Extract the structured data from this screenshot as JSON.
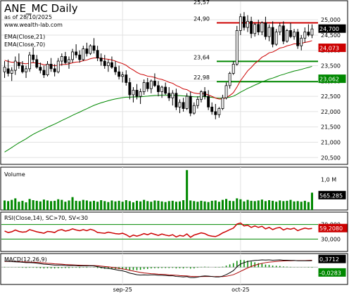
{
  "header": {
    "title": "ANE_MC Daily",
    "date": "as of 28/10/2025",
    "source": "www.wealth-lab.com"
  },
  "colors": {
    "up_candle": "#ffffff",
    "down_candle": "#000000",
    "ema21": "#cc0000",
    "ema70": "#008800",
    "volume": "#008800",
    "rsi": "#cc0000",
    "macd": "#000000",
    "macd_signal": "#aa0000",
    "hist": "#008800",
    "level_red": "#cc0000",
    "level_green": "#008800",
    "frame": "#000000"
  },
  "chart_data": [
    {
      "type": "candlestick",
      "pane": "price",
      "legend": [
        "EMA(Close,21)",
        "EMA(Close,70)"
      ],
      "ylim": [
        20300,
        25600
      ],
      "ticks": [
        20500,
        21000,
        21500,
        22000,
        22500,
        23000,
        23500,
        24000,
        24500,
        25000
      ],
      "tick_labels": [
        "20,500",
        "21,000",
        "21,500",
        "22,000",
        "22,500",
        "23,000",
        "23,500",
        "24,000",
        "24,500",
        "25,000"
      ],
      "x_labels": [
        {
          "label": "sep-25",
          "index": 33
        },
        {
          "label": "oct-25",
          "index": 66
        }
      ],
      "top_label": "25,57",
      "ohlc": [
        [
          23300,
          23650,
          23100,
          23450
        ],
        [
          23400,
          23700,
          23150,
          23250
        ],
        [
          23250,
          23450,
          23000,
          23350
        ],
        [
          23350,
          23800,
          23200,
          23650
        ],
        [
          23600,
          23900,
          23400,
          23500
        ],
        [
          23500,
          23650,
          23250,
          23300
        ],
        [
          23300,
          23500,
          23100,
          23400
        ],
        [
          23400,
          23950,
          23300,
          23850
        ],
        [
          23850,
          24100,
          23600,
          23700
        ],
        [
          23700,
          23850,
          23400,
          23450
        ],
        [
          23450,
          23600,
          23250,
          23350
        ],
        [
          23350,
          23500,
          23100,
          23200
        ],
        [
          23200,
          23650,
          23150,
          23550
        ],
        [
          23550,
          23750,
          23300,
          23400
        ],
        [
          23400,
          23550,
          23150,
          23300
        ],
        [
          23300,
          23750,
          23250,
          23650
        ],
        [
          23650,
          23900,
          23500,
          23800
        ],
        [
          23800,
          23950,
          23550,
          23600
        ],
        [
          23600,
          23800,
          23400,
          23700
        ],
        [
          23700,
          24050,
          23600,
          23950
        ],
        [
          23950,
          24200,
          23750,
          23850
        ],
        [
          23850,
          24000,
          23600,
          23700
        ],
        [
          23700,
          24150,
          23650,
          24050
        ],
        [
          24050,
          24250,
          23800,
          23900
        ],
        [
          23900,
          24200,
          23850,
          24150
        ],
        [
          24150,
          24400,
          23900,
          24000
        ],
        [
          24000,
          24150,
          23650,
          23750
        ],
        [
          23750,
          23900,
          23500,
          23650
        ],
        [
          23650,
          23850,
          23400,
          23500
        ],
        [
          23500,
          23700,
          23300,
          23600
        ],
        [
          23600,
          23800,
          23400,
          23450
        ],
        [
          23450,
          23650,
          23200,
          23300
        ],
        [
          23300,
          23500,
          23050,
          23150
        ],
        [
          23150,
          23300,
          22950,
          23200
        ],
        [
          23200,
          23350,
          22850,
          22950
        ],
        [
          22950,
          23100,
          22400,
          22550
        ],
        [
          22550,
          22800,
          22300,
          22700
        ],
        [
          22700,
          22900,
          22400,
          22500
        ],
        [
          22500,
          22750,
          22250,
          22650
        ],
        [
          22650,
          23050,
          22550,
          22950
        ],
        [
          22950,
          23100,
          22650,
          22750
        ],
        [
          22750,
          23050,
          22600,
          23000
        ],
        [
          23000,
          23250,
          22800,
          22850
        ],
        [
          22850,
          23000,
          22500,
          22650
        ],
        [
          22650,
          22850,
          22450,
          22800
        ],
        [
          22800,
          22950,
          22550,
          22600
        ],
        [
          22600,
          22800,
          22350,
          22450
        ],
        [
          22450,
          22700,
          22200,
          22600
        ],
        [
          22600,
          22750,
          22050,
          22150
        ],
        [
          22150,
          22400,
          21950,
          22300
        ],
        [
          22300,
          22450,
          22000,
          22100
        ],
        [
          22100,
          22600,
          22050,
          22500
        ],
        [
          22500,
          22650,
          21850,
          21950
        ],
        [
          21950,
          22300,
          21900,
          22200
        ],
        [
          22200,
          22500,
          22100,
          22400
        ],
        [
          22400,
          22700,
          22300,
          22650
        ],
        [
          22650,
          22800,
          22400,
          22500
        ],
        [
          22500,
          22700,
          22050,
          22150
        ],
        [
          22150,
          22300,
          21900,
          22000
        ],
        [
          22000,
          22250,
          21750,
          21900
        ],
        [
          21900,
          22150,
          21800,
          22100
        ],
        [
          22100,
          22550,
          22050,
          22450
        ],
        [
          22450,
          22950,
          22400,
          22850
        ],
        [
          22850,
          23300,
          22750,
          23250
        ],
        [
          23250,
          23650,
          23200,
          23550
        ],
        [
          23550,
          24800,
          23500,
          24650
        ],
        [
          24650,
          25200,
          24500,
          25100
        ],
        [
          25100,
          25250,
          24650,
          24750
        ],
        [
          24750,
          25150,
          24600,
          24950
        ],
        [
          24950,
          25100,
          24400,
          24550
        ],
        [
          24550,
          24900,
          24450,
          24850
        ],
        [
          24850,
          25000,
          24500,
          24600
        ],
        [
          24600,
          24950,
          24500,
          24900
        ],
        [
          24900,
          25100,
          24350,
          24450
        ],
        [
          24450,
          24850,
          24300,
          24750
        ],
        [
          24750,
          24950,
          24100,
          24200
        ],
        [
          24200,
          24700,
          24150,
          24600
        ],
        [
          24600,
          24900,
          24500,
          24800
        ],
        [
          24800,
          24950,
          24200,
          24300
        ],
        [
          24300,
          24700,
          24250,
          24650
        ],
        [
          24650,
          24900,
          24400,
          24450
        ],
        [
          24450,
          24700,
          24350,
          24600
        ],
        [
          24600,
          24700,
          24050,
          24150
        ],
        [
          24150,
          24500,
          24000,
          24400
        ],
        [
          24400,
          24750,
          24250,
          24600
        ],
        [
          24600,
          24850,
          24450,
          24500
        ],
        [
          24500,
          24850,
          24400,
          24700
        ]
      ],
      "ema21_last": 24073,
      "ema70_last": 23062,
      "last_close": 24700,
      "ema21_label": "24,073",
      "ema70_label": "23,062",
      "last_label": "24,700",
      "levels": [
        {
          "value": 24900,
          "label": "24,90",
          "color": "red"
        },
        {
          "value": 23640,
          "label": "23,64",
          "color": "green"
        },
        {
          "value": 22980,
          "label": "22,98",
          "color": "green"
        }
      ]
    },
    {
      "type": "bar",
      "pane": "volume",
      "legend": "Volume",
      "ylim": [
        0,
        1350000
      ],
      "tick_label": "1,0 M",
      "last_label": "565.285",
      "values": [
        310000,
        290000,
        330000,
        380000,
        270000,
        300000,
        250000,
        360000,
        320000,
        300000,
        280000,
        340000,
        310000,
        290000,
        300000,
        350000,
        330000,
        270000,
        310000,
        420000,
        300000,
        290000,
        330000,
        310000,
        280000,
        300000,
        270000,
        320000,
        290000,
        260000,
        310000,
        280000,
        300000,
        270000,
        320000,
        290000,
        250000,
        300000,
        280000,
        330000,
        290000,
        270000,
        310000,
        300000,
        280000,
        260000,
        290000,
        300000,
        270000,
        280000,
        320000,
        1300000,
        310000,
        290000,
        270000,
        300000,
        280000,
        260000,
        300000,
        310000,
        270000,
        330000,
        360000,
        300000,
        290000,
        380000,
        350000,
        280000,
        330000,
        300000,
        290000,
        310000,
        340000,
        290000,
        320000,
        300000,
        270000,
        310000,
        290000,
        300000,
        330000,
        280000,
        290000,
        270000,
        300000,
        260000,
        565285
      ]
    },
    {
      "type": "line",
      "pane": "rsi",
      "legend": "RSI(Close,14), SC>70, SV<30",
      "ylim": [
        0,
        100
      ],
      "tick_labels": [
        "70,000",
        "30,000"
      ],
      "last_label": "59,2080",
      "values": [
        52,
        48,
        50,
        55,
        51,
        49,
        50,
        56,
        53,
        50,
        48,
        46,
        51,
        50,
        48,
        54,
        56,
        52,
        54,
        58,
        55,
        53,
        56,
        53,
        57,
        54,
        48,
        47,
        46,
        49,
        47,
        45,
        44,
        46,
        42,
        36,
        41,
        38,
        41,
        45,
        42,
        46,
        43,
        40,
        44,
        41,
        39,
        42,
        36,
        40,
        38,
        44,
        35,
        41,
        44,
        47,
        45,
        40,
        38,
        37,
        41,
        47,
        51,
        56,
        60,
        71,
        74,
        66,
        68,
        62,
        66,
        62,
        65,
        58,
        62,
        56,
        60,
        62,
        55,
        59,
        57,
        60,
        53,
        57,
        60,
        58,
        59.2
      ]
    },
    {
      "type": "line",
      "pane": "macd",
      "legend": "MACD(12,26,9)",
      "ylim": [
        -0.95,
        0.7
      ],
      "macd_label": "0,3712",
      "hist_label": "-0,0283",
      "macd": [
        0.35,
        0.34,
        0.32,
        0.31,
        0.3,
        0.28,
        0.26,
        0.26,
        0.25,
        0.23,
        0.2,
        0.17,
        0.16,
        0.14,
        0.12,
        0.12,
        0.12,
        0.1,
        0.09,
        0.1,
        0.09,
        0.07,
        0.08,
        0.07,
        0.08,
        0.07,
        0.03,
        -0.01,
        -0.05,
        -0.07,
        -0.1,
        -0.14,
        -0.18,
        -0.21,
        -0.26,
        -0.34,
        -0.38,
        -0.43,
        -0.45,
        -0.44,
        -0.45,
        -0.44,
        -0.44,
        -0.46,
        -0.46,
        -0.47,
        -0.49,
        -0.49,
        -0.53,
        -0.54,
        -0.56,
        -0.54,
        -0.6,
        -0.6,
        -0.57,
        -0.52,
        -0.5,
        -0.51,
        -0.53,
        -0.56,
        -0.56,
        -0.51,
        -0.43,
        -0.32,
        -0.2,
        0.02,
        0.18,
        0.26,
        0.33,
        0.36,
        0.39,
        0.4,
        0.42,
        0.41,
        0.42,
        0.4,
        0.41,
        0.42,
        0.4,
        0.4,
        0.39,
        0.39,
        0.37,
        0.37,
        0.37,
        0.37,
        0.3712
      ],
      "signal": [
        0.33,
        0.33,
        0.33,
        0.32,
        0.32,
        0.31,
        0.3,
        0.29,
        0.28,
        0.27,
        0.26,
        0.24,
        0.22,
        0.21,
        0.19,
        0.18,
        0.17,
        0.15,
        0.14,
        0.13,
        0.12,
        0.11,
        0.1,
        0.1,
        0.09,
        0.09,
        0.08,
        0.06,
        0.04,
        0.02,
        -0.01,
        -0.04,
        -0.07,
        -0.1,
        -0.13,
        -0.18,
        -0.22,
        -0.26,
        -0.3,
        -0.33,
        -0.35,
        -0.37,
        -0.38,
        -0.4,
        -0.41,
        -0.42,
        -0.44,
        -0.45,
        -0.46,
        -0.48,
        -0.49,
        -0.5,
        -0.52,
        -0.53,
        -0.54,
        -0.54,
        -0.53,
        -0.53,
        -0.53,
        -0.54,
        -0.54,
        -0.54,
        -0.52,
        -0.48,
        -0.43,
        -0.34,
        -0.24,
        -0.14,
        -0.04,
        0.04,
        0.11,
        0.17,
        0.22,
        0.26,
        0.29,
        0.31,
        0.33,
        0.35,
        0.36,
        0.37,
        0.37,
        0.38,
        0.38,
        0.38,
        0.38,
        0.39,
        0.3995
      ]
    }
  ]
}
